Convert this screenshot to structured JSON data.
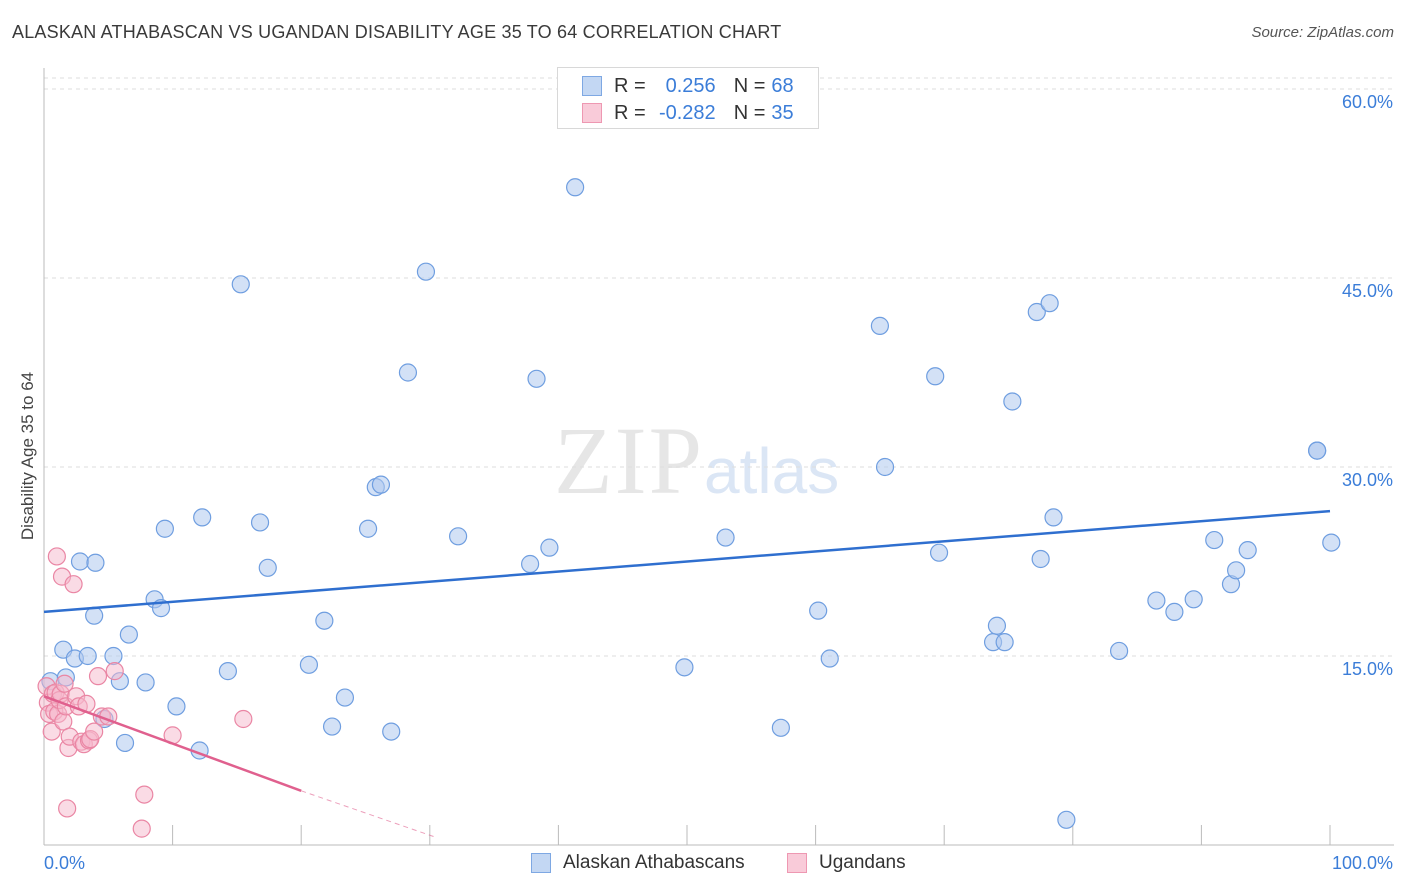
{
  "title": "ALASKAN ATHABASCAN VS UGANDAN DISABILITY AGE 35 TO 64 CORRELATION CHART",
  "source": "Source: ZipAtlas.com",
  "watermark": {
    "zip": "ZIP",
    "atlas": "atlas"
  },
  "colors": {
    "blue_fill": "#aec9ef",
    "blue_stroke": "#6f9ee0",
    "blue_line": "#2f6fcf",
    "pink_fill": "#f6b8cb",
    "pink_stroke": "#ea86a4",
    "pink_line": "#e0608e",
    "axis_label": "#3b7dd8",
    "grid": "#dddddd"
  },
  "legend": {
    "r_label": "R =",
    "n_label": "N =",
    "series": [
      {
        "r": "0.256",
        "n": "68"
      },
      {
        "r": "-0.282",
        "n": "35"
      }
    ]
  },
  "chart_data": {
    "type": "scatter",
    "title": "ALASKAN ATHABASCAN VS UGANDAN DISABILITY AGE 35 TO 64 CORRELATION CHART",
    "xlabel": "",
    "ylabel": "Disability Age 35 to 64",
    "xlim": [
      0,
      100
    ],
    "ylim": [
      0,
      62
    ],
    "x_tick_labels": [
      "0.0%",
      "100.0%"
    ],
    "y_ticks": [
      15,
      30,
      45,
      60
    ],
    "y_tick_labels": [
      "15.0%",
      "30.0%",
      "45.0%",
      "60.0%"
    ],
    "series": [
      {
        "name": "Alaskan Athabascans",
        "color": "#aec9ef",
        "trend": {
          "x": [
            0,
            100
          ],
          "y": [
            18.5,
            26.5
          ]
        },
        "points": [
          [
            0.5,
            13.0
          ],
          [
            1.5,
            15.5
          ],
          [
            1.7,
            13.3
          ],
          [
            2.4,
            14.8
          ],
          [
            2.8,
            22.5
          ],
          [
            3.4,
            15.0
          ],
          [
            3.9,
            18.2
          ],
          [
            4.0,
            22.4
          ],
          [
            4.7,
            10.0
          ],
          [
            5.4,
            15.0
          ],
          [
            5.9,
            13.0
          ],
          [
            6.3,
            8.1
          ],
          [
            6.6,
            16.7
          ],
          [
            7.9,
            12.9
          ],
          [
            8.6,
            19.5
          ],
          [
            9.1,
            18.8
          ],
          [
            9.4,
            25.1
          ],
          [
            10.3,
            11.0
          ],
          [
            12.1,
            7.5
          ],
          [
            12.3,
            26.0
          ],
          [
            14.3,
            13.8
          ],
          [
            15.3,
            44.5
          ],
          [
            16.8,
            25.6
          ],
          [
            17.4,
            22.0
          ],
          [
            20.6,
            14.3
          ],
          [
            21.8,
            17.8
          ],
          [
            22.4,
            9.4
          ],
          [
            23.4,
            11.7
          ],
          [
            25.2,
            25.1
          ],
          [
            25.8,
            28.4
          ],
          [
            26.2,
            28.6
          ],
          [
            27.0,
            9.0
          ],
          [
            28.3,
            37.5
          ],
          [
            29.7,
            45.5
          ],
          [
            32.2,
            24.5
          ],
          [
            37.8,
            22.3
          ],
          [
            38.3,
            37.0
          ],
          [
            39.3,
            23.6
          ],
          [
            41.3,
            52.2
          ],
          [
            49.8,
            14.1
          ],
          [
            53.0,
            24.4
          ],
          [
            57.3,
            9.3
          ],
          [
            60.2,
            18.6
          ],
          [
            61.1,
            14.8
          ],
          [
            65.0,
            41.2
          ],
          [
            65.4,
            30.0
          ],
          [
            69.3,
            37.2
          ],
          [
            69.6,
            23.2
          ],
          [
            73.8,
            16.1
          ],
          [
            74.1,
            17.4
          ],
          [
            74.7,
            16.1
          ],
          [
            75.3,
            35.2
          ],
          [
            77.2,
            42.3
          ],
          [
            77.5,
            22.7
          ],
          [
            78.2,
            43.0
          ],
          [
            78.5,
            26.0
          ],
          [
            79.5,
            2.0
          ],
          [
            83.6,
            15.4
          ],
          [
            86.5,
            19.4
          ],
          [
            87.9,
            18.5
          ],
          [
            89.4,
            19.5
          ],
          [
            91.0,
            24.2
          ],
          [
            92.3,
            20.7
          ],
          [
            92.7,
            21.8
          ],
          [
            93.6,
            23.4
          ],
          [
            99.0,
            31.3
          ],
          [
            100.1,
            24.0
          ],
          [
            99.0,
            31.3
          ]
        ]
      },
      {
        "name": "Ugandans",
        "color": "#f6b8cb",
        "trend": {
          "x": [
            0,
            20
          ],
          "y": [
            11.8,
            4.3
          ]
        },
        "trend_dashed": {
          "x": [
            20,
            30.5
          ],
          "y": [
            4.3,
            0.6
          ]
        },
        "points": [
          [
            0.2,
            12.6
          ],
          [
            0.3,
            11.3
          ],
          [
            0.4,
            10.4
          ],
          [
            0.6,
            9.0
          ],
          [
            0.7,
            12.0
          ],
          [
            0.8,
            10.6
          ],
          [
            0.9,
            12.1
          ],
          [
            1.0,
            22.9
          ],
          [
            1.1,
            10.4
          ],
          [
            1.2,
            11.5
          ],
          [
            1.3,
            12.0
          ],
          [
            1.4,
            21.3
          ],
          [
            1.5,
            9.8
          ],
          [
            1.6,
            12.8
          ],
          [
            1.7,
            11.0
          ],
          [
            1.8,
            2.9
          ],
          [
            1.9,
            7.7
          ],
          [
            2.0,
            8.6
          ],
          [
            2.3,
            20.7
          ],
          [
            2.5,
            11.8
          ],
          [
            2.7,
            11.0
          ],
          [
            2.9,
            8.2
          ],
          [
            3.1,
            8.0
          ],
          [
            3.3,
            11.2
          ],
          [
            3.5,
            8.3
          ],
          [
            3.6,
            8.4
          ],
          [
            3.9,
            9.0
          ],
          [
            4.2,
            13.4
          ],
          [
            4.5,
            10.2
          ],
          [
            5.0,
            10.2
          ],
          [
            5.5,
            13.8
          ],
          [
            7.6,
            1.3
          ],
          [
            7.8,
            4.0
          ],
          [
            10.0,
            8.7
          ],
          [
            15.5,
            10.0
          ]
        ]
      }
    ]
  },
  "bottom_legend": [
    "Alaskan Athabascans",
    "Ugandans"
  ]
}
